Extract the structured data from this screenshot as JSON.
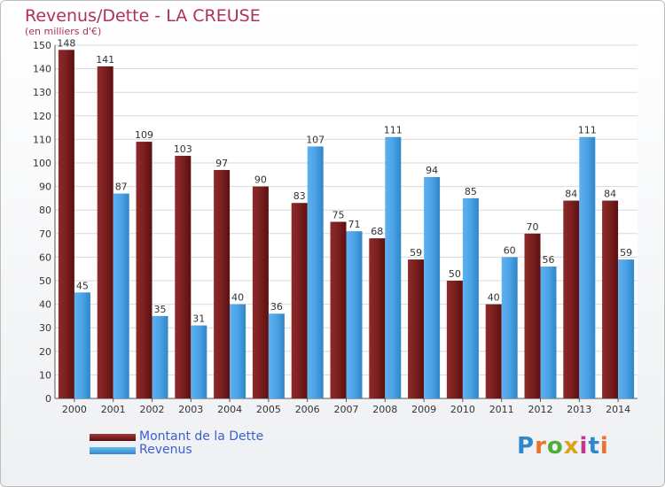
{
  "header": {
    "title": "Revenus/Dette - LA CREUSE",
    "subtitle": "(en milliers d'€)"
  },
  "legend": {
    "items": [
      {
        "label": "Montant de la Dette",
        "color": "#7a1f1f"
      },
      {
        "label": "Revenus",
        "color": "#4aa3e6"
      }
    ]
  },
  "logo": {
    "text": "Proxiti"
  },
  "chart_data": {
    "type": "bar",
    "categories": [
      "2000",
      "2001",
      "2002",
      "2003",
      "2004",
      "2005",
      "2006",
      "2007",
      "2008",
      "2009",
      "2010",
      "2011",
      "2012",
      "2013",
      "2014"
    ],
    "series": [
      {
        "name": "Montant de la Dette",
        "color": "#7a1f1f",
        "values": [
          148,
          141,
          109,
          103,
          97,
          90,
          83,
          75,
          68,
          59,
          50,
          40,
          70,
          84,
          84
        ]
      },
      {
        "name": "Revenus",
        "color": "#4aa3e6",
        "values": [
          45,
          87,
          35,
          31,
          40,
          36,
          107,
          71,
          111,
          94,
          85,
          60,
          56,
          111,
          59
        ]
      }
    ],
    "title": "Revenus/Dette - LA CREUSE",
    "ylabel": "(en milliers d'€)",
    "ylim": [
      0,
      150
    ],
    "yticks": [
      0,
      10,
      20,
      30,
      40,
      50,
      60,
      70,
      80,
      90,
      100,
      110,
      120,
      130,
      140,
      150
    ],
    "grid": true,
    "legend_position": "bottom-left"
  }
}
